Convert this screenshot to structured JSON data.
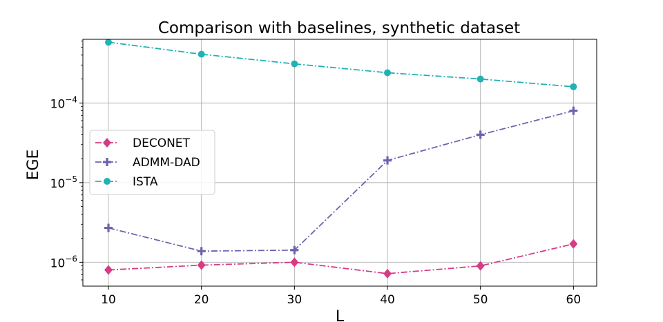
{
  "chart_data": {
    "type": "line",
    "title": "Comparison with baselines, synthetic dataset",
    "xlabel": "L",
    "ylabel": "EGE",
    "yscale": "log",
    "x": [
      10,
      20,
      30,
      40,
      50,
      60
    ],
    "xticks": [
      "10",
      "20",
      "30",
      "40",
      "50",
      "60"
    ],
    "xlim": [
      7.25,
      62.5
    ],
    "ylim_log10": [
      -6.3,
      -3.2
    ],
    "yticks": [
      {
        "exp": -6,
        "base": "10",
        "sup": "−6"
      },
      {
        "exp": -5,
        "base": "10",
        "sup": "−5"
      },
      {
        "exp": -4,
        "base": "10",
        "sup": "−4"
      }
    ],
    "grid": true,
    "legend_position": "center-left",
    "series": [
      {
        "name": "DECONET",
        "color": "#d63b86",
        "marker": "diamond",
        "values": [
          8e-07,
          9.2e-07,
          1e-06,
          7.2e-07,
          9e-07,
          1.7e-06
        ]
      },
      {
        "name": "ADMM-DAD",
        "color": "#6a64ae",
        "marker": "plus",
        "values": [
          2.7e-06,
          1.38e-06,
          1.42e-06,
          1.9e-05,
          4e-05,
          8e-05
        ]
      },
      {
        "name": "ISTA",
        "color": "#20b2b4",
        "marker": "circle",
        "values": [
          0.00058,
          0.00041,
          0.00031,
          0.00024,
          0.0002,
          0.00016
        ]
      }
    ]
  }
}
